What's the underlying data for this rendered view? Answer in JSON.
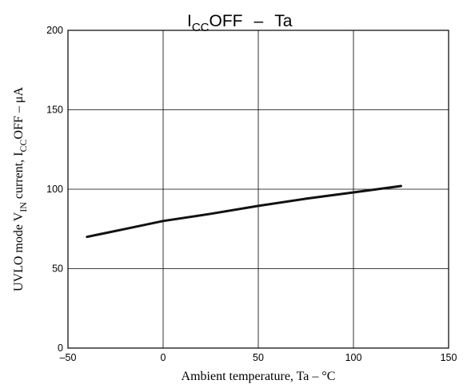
{
  "chart_data": {
    "type": "line",
    "title": {
      "prefix": "I",
      "subscript": "CC",
      "suffix": "OFF",
      "dash": "–",
      "variable": "Ta"
    },
    "xlabel": {
      "text": "Ambient temperature,  Ta  –  °C"
    },
    "ylabel": {
      "part1": "UVLO mode V",
      "sub1": "IN",
      "part2": " current, I",
      "sub2": "CC",
      "part3": "OFF  –  μA"
    },
    "xlim": [
      -50,
      150
    ],
    "ylim": [
      0,
      200
    ],
    "x_ticks": [
      -50,
      0,
      50,
      100,
      150
    ],
    "x_tick_labels": [
      "–50",
      "0",
      "50",
      "100",
      "150"
    ],
    "y_ticks": [
      0,
      50,
      100,
      150,
      200
    ],
    "y_tick_labels": [
      "0",
      "50",
      "100",
      "150",
      "200"
    ],
    "grid": true,
    "series": [
      {
        "x": [
          -40,
          -20,
          0,
          25,
          50,
          75,
          100,
          125
        ],
        "y": [
          70,
          75,
          80,
          84.5,
          89.5,
          94,
          98,
          102
        ]
      }
    ]
  }
}
